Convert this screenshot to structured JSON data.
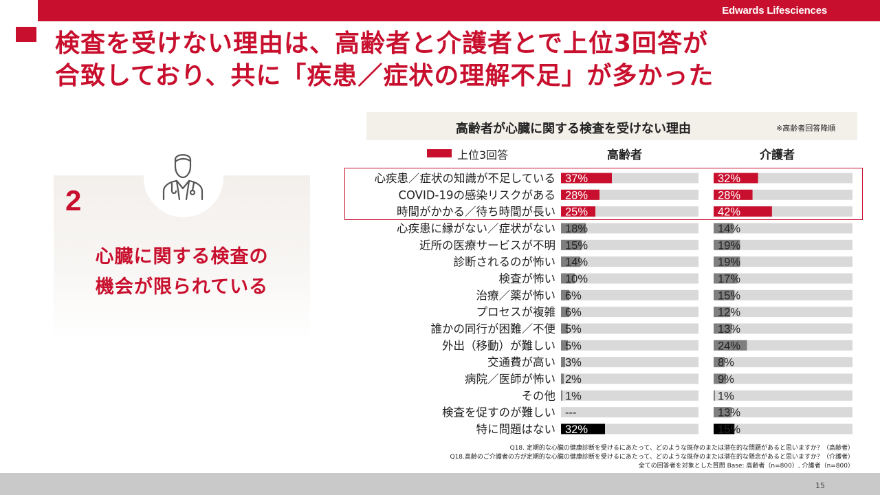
{
  "header": {
    "brand": "Edwards Lifesciences"
  },
  "title": {
    "line1": "検査を受けない理由は、高齢者と介護者とで上位3回答が",
    "line2": "合致しており、共に「疾患／症状の理解不足」が多かった"
  },
  "card": {
    "number": "2",
    "line1": "心臓に関する検査の",
    "line2": "機会が限られている",
    "icon": "doctor-icon"
  },
  "chart_header": {
    "title": "高齢者が心臓に関する検査を受けない理由",
    "note": "※高齢者回答降順"
  },
  "legend": {
    "label": "上位3回答"
  },
  "columns": {
    "elderly": "高齢者",
    "caregiver": "介護者"
  },
  "colors": {
    "accent": "#c8102e",
    "gray_fill": "#7f7f7f",
    "track": "#d9d9d9",
    "black": "#000000"
  },
  "chart_data": {
    "type": "bar",
    "categories": [
      "心疾患／症状の知識が不足している",
      "COVID-19の感染リスクがある",
      "時間がかかる／待ち時間が長い",
      "心疾患に縁がない／症状がない",
      "近所の医療サービスが不明",
      "診断されるのが怖い",
      "検査が怖い",
      "治療／薬が怖い",
      "プロセスが複雑",
      "誰かの同行が困難／不便",
      "外出（移動）が難しい",
      "交通費が高い",
      "病院／医師が怖い",
      "その他",
      "検査を促すのが難しい",
      "特に問題はない"
    ],
    "series": [
      {
        "name": "高齢者",
        "values": [
          37,
          28,
          25,
          18,
          15,
          14,
          10,
          6,
          6,
          5,
          5,
          3,
          2,
          1,
          null,
          32
        ],
        "labels": [
          "37%",
          "28%",
          "25%",
          "18%",
          "15%",
          "14%",
          "10%",
          "6%",
          "6%",
          "5%",
          "5%",
          "3%",
          "2%",
          "1%",
          "---",
          "32%"
        ]
      },
      {
        "name": "介護者",
        "values": [
          32,
          28,
          42,
          14,
          19,
          19,
          17,
          15,
          12,
          13,
          24,
          8,
          9,
          1,
          13,
          15
        ],
        "labels": [
          "32%",
          "28%",
          "42%",
          "14%",
          "19%",
          "19%",
          "17%",
          "15%",
          "12%",
          "13%",
          "24%",
          "8%",
          "9%",
          "1%",
          "13%",
          "15%"
        ]
      }
    ],
    "top3": [
      0,
      1,
      2
    ],
    "last_row_black": true,
    "ylim": [
      0,
      100
    ]
  },
  "footnotes": {
    "line1": "Q18. 定期的な心臓の健康診断を受けるにあたって、どのような既存のまたは潜在的な問題があると思いますか？（高齢者）",
    "line2": "Q18.高齢のご介護者の方が定期的な心臓の健康診断を受けるにあたって、どのような既存のまたは潜在的な懸念があると思いますか？（介護者）",
    "line3": "全ての回答者を対象とした質問 Base: 高齢者（n=800）, 介護者（n=800）"
  },
  "page_number": "15"
}
